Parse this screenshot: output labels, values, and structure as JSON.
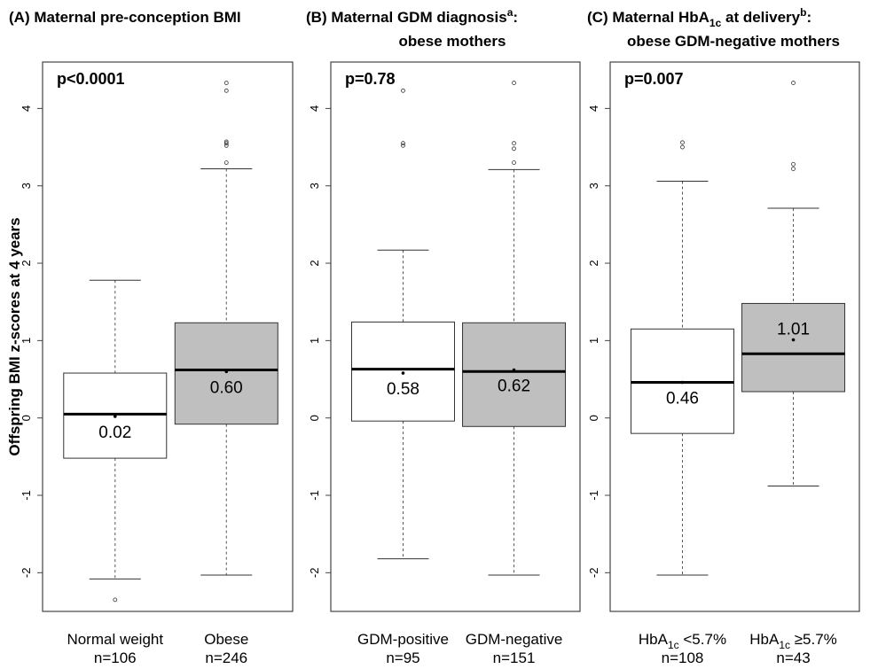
{
  "chart_data": [
    {
      "type": "boxplot",
      "title_line1": "(A) Maternal pre-conception BMI",
      "title_line2": "",
      "ylabel": "Offspring BMI z-scores at 4 years",
      "ylim": [
        -2.5,
        4.6
      ],
      "yticks": [
        "-2",
        "-1",
        "0",
        "1",
        "2",
        "3",
        "4"
      ],
      "p_value": "p<0.0001",
      "series": [
        {
          "label": "Normal weight",
          "n": "n=106",
          "fill": "#ffffff",
          "min": -2.08,
          "q1": -0.52,
          "median": 0.05,
          "mean": 0.02,
          "q3": 0.58,
          "max": 1.78,
          "mean_label": "0.02",
          "outliers": [
            -2.35
          ]
        },
        {
          "label": "Obese",
          "n": "n=246",
          "fill": "#bfbfbf",
          "min": -2.03,
          "q1": -0.08,
          "median": 0.62,
          "mean": 0.6,
          "q3": 1.23,
          "max": 3.22,
          "mean_label": "0.60",
          "outliers": [
            3.3,
            3.52,
            3.55,
            3.57,
            4.23,
            4.33
          ]
        }
      ]
    },
    {
      "type": "boxplot",
      "title_line1": "(B) Maternal GDM diagnosis",
      "title_sup": "a",
      "title_after": ":",
      "title_line2": "obese mothers",
      "ylim": [
        -2.5,
        4.6
      ],
      "yticks": [
        "-2",
        "-1",
        "0",
        "1",
        "2",
        "3",
        "4"
      ],
      "p_value": "p=0.78",
      "series": [
        {
          "label": "GDM-positive",
          "n": "n=95",
          "fill": "#ffffff",
          "min": -1.82,
          "q1": -0.04,
          "median": 0.63,
          "mean": 0.58,
          "q3": 1.24,
          "max": 2.17,
          "mean_label": "0.58",
          "outliers": [
            3.52,
            3.55,
            4.23
          ]
        },
        {
          "label": "GDM-negative",
          "n": "n=151",
          "fill": "#bfbfbf",
          "min": -2.03,
          "q1": -0.11,
          "median": 0.6,
          "mean": 0.62,
          "q3": 1.23,
          "max": 3.21,
          "mean_label": "0.62",
          "outliers": [
            3.3,
            3.48,
            3.55,
            4.33
          ]
        }
      ]
    },
    {
      "type": "boxplot",
      "title_line1": "(C) Maternal HbA",
      "title_sub": "1c",
      "title_after_sub": " at delivery",
      "title_sup": "b",
      "title_after": ":",
      "title_line2": "obese GDM-negative mothers",
      "ylim": [
        -2.5,
        4.6
      ],
      "yticks": [
        "-2",
        "-1",
        "0",
        "1",
        "2",
        "3",
        "4"
      ],
      "p_value": "p=0.007",
      "series": [
        {
          "label_main": "HbA",
          "label_sub": "1c",
          "label_after": " <5.7%",
          "n": "n=108",
          "fill": "#ffffff",
          "min": -2.03,
          "q1": -0.2,
          "median": 0.46,
          "mean": 0.46,
          "q3": 1.15,
          "max": 3.06,
          "mean_label": "0.46",
          "outliers": [
            3.5,
            3.56
          ]
        },
        {
          "label_main": "HbA",
          "label_sub": "1c",
          "label_after": " ≥5.7%",
          "n": "n=43",
          "fill": "#bfbfbf",
          "min": -0.88,
          "q1": 0.34,
          "median": 0.83,
          "mean": 1.01,
          "q3": 1.48,
          "max": 2.71,
          "mean_label": "1.01",
          "outliers": [
            3.22,
            3.28,
            4.33
          ]
        }
      ]
    }
  ]
}
